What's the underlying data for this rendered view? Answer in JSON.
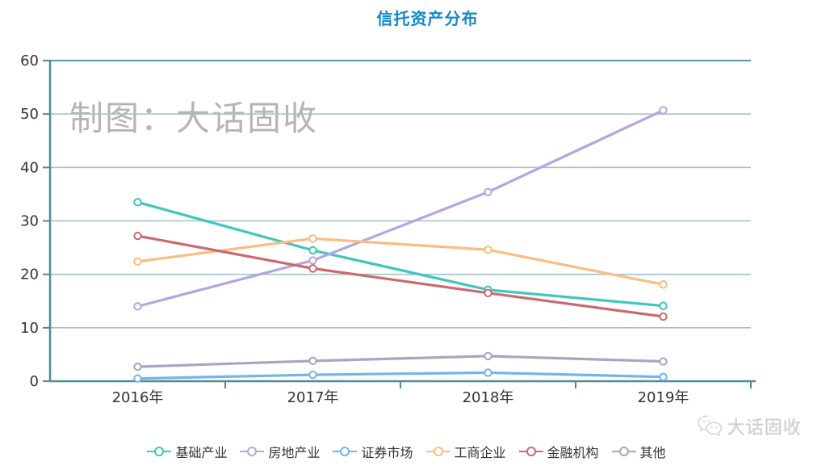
{
  "title": {
    "text": "信托资产分布",
    "color": "#1088cc"
  },
  "watermark": "制图：大话固收",
  "brand": {
    "name": "大话固收",
    "icon": "wechat-icon"
  },
  "axis": {
    "x_labels": [
      "2016年",
      "2017年",
      "2018年",
      "2019年"
    ],
    "y_labels": [
      "0",
      "10",
      "20",
      "30",
      "40",
      "50",
      "60"
    ]
  },
  "chart_data": {
    "type": "line",
    "title": "信托资产分布",
    "categories": [
      "2016年",
      "2017年",
      "2018年",
      "2019年"
    ],
    "series": [
      {
        "name": "基础产业",
        "color": "#3fc6bd",
        "values": [
          33.5,
          24.5,
          17.1,
          14.1
        ]
      },
      {
        "name": "房地产业",
        "color": "#b3a5e2",
        "values": [
          14.0,
          22.6,
          35.4,
          50.7
        ]
      },
      {
        "name": "证券市场",
        "color": "#72b5ea",
        "values": [
          0.5,
          1.2,
          1.6,
          0.8
        ]
      },
      {
        "name": "工商企业",
        "color": "#f9bd81",
        "values": [
          22.4,
          26.7,
          24.6,
          18.1
        ]
      },
      {
        "name": "金融机构",
        "color": "#c96a71",
        "values": [
          27.2,
          21.1,
          16.5,
          12.1
        ]
      },
      {
        "name": "其他",
        "color": "#a2a8c0",
        "values": [
          2.7,
          3.8,
          4.7,
          3.7
        ]
      }
    ],
    "xlabel": "",
    "ylabel": "",
    "ylim": [
      0,
      60
    ],
    "ytick_step": 10,
    "grid": true,
    "legend_position": "bottom",
    "marker": "open-circle",
    "axis_color": "#4d8b97",
    "top_border_color": "#5d96a2",
    "grid_color": "#a2c2ca",
    "tick_label_color": "#333333"
  }
}
